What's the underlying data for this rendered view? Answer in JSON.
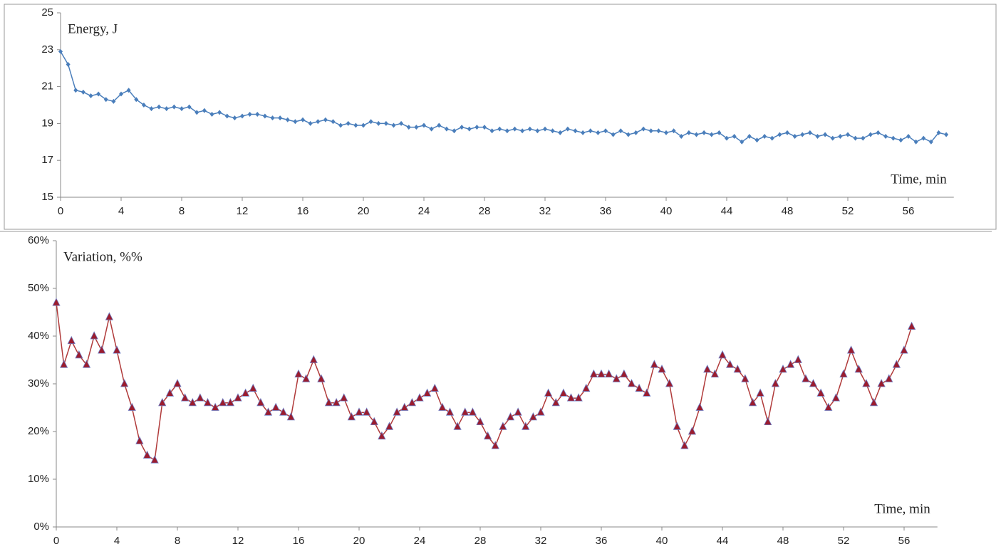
{
  "chart_data": [
    {
      "type": "line",
      "marker": "diamond",
      "color": "#4a7ebb",
      "marker_color": "#4a7ebb",
      "y_label": "Energy, J",
      "x_label": "Time, min",
      "xlim": [
        0,
        59
      ],
      "xticks": [
        0,
        4,
        8,
        12,
        16,
        20,
        24,
        28,
        32,
        36,
        40,
        44,
        48,
        52,
        56
      ],
      "ylim": [
        15,
        25
      ],
      "yticks": [
        15,
        17,
        19,
        21,
        23,
        25
      ],
      "grid": false,
      "x": [
        0,
        0.5,
        1,
        1.5,
        2,
        2.5,
        3,
        3.5,
        4,
        4.5,
        5,
        5.5,
        6,
        6.5,
        7,
        7.5,
        8,
        8.5,
        9,
        9.5,
        10,
        10.5,
        11,
        11.5,
        12,
        12.5,
        13,
        13.5,
        14,
        14.5,
        15,
        15.5,
        16,
        16.5,
        17,
        17.5,
        18,
        18.5,
        19,
        19.5,
        20,
        20.5,
        21,
        21.5,
        22,
        22.5,
        23,
        23.5,
        24,
        24.5,
        25,
        25.5,
        26,
        26.5,
        27,
        27.5,
        28,
        28.5,
        29,
        29.5,
        30,
        30.5,
        31,
        31.5,
        32,
        32.5,
        33,
        33.5,
        34,
        34.5,
        35,
        35.5,
        36,
        36.5,
        37,
        37.5,
        38,
        38.5,
        39,
        39.5,
        40,
        40.5,
        41,
        41.5,
        42,
        42.5,
        43,
        43.5,
        44,
        44.5,
        45,
        45.5,
        46,
        46.5,
        47,
        47.5,
        48,
        48.5,
        49,
        49.5,
        50,
        50.5,
        51,
        51.5,
        52,
        52.5,
        53,
        53.5,
        54,
        54.5,
        55,
        55.5,
        56,
        56.5,
        57,
        57.5,
        58,
        58.5
      ],
      "values": [
        22.9,
        22.2,
        20.8,
        20.7,
        20.5,
        20.6,
        20.3,
        20.2,
        20.6,
        20.8,
        20.3,
        20.0,
        19.8,
        19.9,
        19.8,
        19.9,
        19.8,
        19.9,
        19.6,
        19.7,
        19.5,
        19.6,
        19.4,
        19.3,
        19.4,
        19.5,
        19.5,
        19.4,
        19.3,
        19.3,
        19.2,
        19.1,
        19.2,
        19.0,
        19.1,
        19.2,
        19.1,
        18.9,
        19.0,
        18.9,
        18.9,
        19.1,
        19.0,
        19.0,
        18.9,
        19.0,
        18.8,
        18.8,
        18.9,
        18.7,
        18.9,
        18.7,
        18.6,
        18.8,
        18.7,
        18.8,
        18.8,
        18.6,
        18.7,
        18.6,
        18.7,
        18.6,
        18.7,
        18.6,
        18.7,
        18.6,
        18.5,
        18.7,
        18.6,
        18.5,
        18.6,
        18.5,
        18.6,
        18.4,
        18.6,
        18.4,
        18.5,
        18.7,
        18.6,
        18.6,
        18.5,
        18.6,
        18.3,
        18.5,
        18.4,
        18.5,
        18.4,
        18.5,
        18.2,
        18.3,
        18.0,
        18.3,
        18.1,
        18.3,
        18.2,
        18.4,
        18.5,
        18.3,
        18.4,
        18.5,
        18.3,
        18.4,
        18.2,
        18.3,
        18.4,
        18.2,
        18.2,
        18.4,
        18.5,
        18.3,
        18.2,
        18.1,
        18.3,
        18.0,
        18.2,
        18.0,
        18.5,
        18.4
      ]
    },
    {
      "type": "line",
      "marker": "triangle",
      "color": "#b03a3a",
      "marker_color": "#9b1c2e",
      "y_label": "Variation, %%",
      "x_label": "Time, min",
      "xlim": [
        0,
        58.2
      ],
      "xticks": [
        0,
        4,
        8,
        12,
        16,
        20,
        24,
        28,
        32,
        36,
        40,
        44,
        48,
        52,
        56
      ],
      "ylim": [
        0,
        60
      ],
      "yticks": [
        {
          "value": 0,
          "label": "0%"
        },
        {
          "value": 10,
          "label": "10%"
        },
        {
          "value": 20,
          "label": "20%"
        },
        {
          "value": 30,
          "label": "30%"
        },
        {
          "value": 40,
          "label": "40%"
        },
        {
          "value": 50,
          "label": "50%"
        },
        {
          "value": 60,
          "label": "60%"
        }
      ],
      "grid": false,
      "x": [
        0,
        0.5,
        1,
        1.5,
        2,
        2.5,
        3,
        3.5,
        4,
        4.5,
        5,
        5.5,
        6,
        6.5,
        7,
        7.5,
        8,
        8.5,
        9,
        9.5,
        10,
        10.5,
        11,
        11.5,
        12,
        12.5,
        13,
        13.5,
        14,
        14.5,
        15,
        15.5,
        16,
        16.5,
        17,
        17.5,
        18,
        18.5,
        19,
        19.5,
        20,
        20.5,
        21,
        21.5,
        22,
        22.5,
        23,
        23.5,
        24,
        24.5,
        25,
        25.5,
        26,
        26.5,
        27,
        27.5,
        28,
        28.5,
        29,
        29.5,
        30,
        30.5,
        31,
        31.5,
        32,
        32.5,
        33,
        33.5,
        34,
        34.5,
        35,
        35.5,
        36,
        36.5,
        37,
        37.5,
        38,
        38.5,
        39,
        39.5,
        40,
        40.5,
        41,
        41.5,
        42,
        42.5,
        43,
        43.5,
        44,
        44.5,
        45,
        45.5,
        46,
        46.5,
        47,
        47.5,
        48,
        48.5,
        49,
        49.5,
        50,
        50.5,
        51,
        51.5,
        52,
        52.5,
        53,
        53.5,
        54,
        54.5,
        55,
        55.5,
        56,
        56.5
      ],
      "values": [
        47,
        34,
        39,
        36,
        34,
        40,
        37,
        44,
        37,
        30,
        25,
        18,
        15,
        14,
        26,
        28,
        30,
        27,
        26,
        27,
        26,
        25,
        26,
        26,
        27,
        28,
        29,
        26,
        24,
        25,
        24,
        23,
        32,
        31,
        35,
        31,
        26,
        26,
        27,
        23,
        24,
        24,
        22,
        19,
        21,
        24,
        25,
        26,
        27,
        28,
        29,
        25,
        24,
        21,
        24,
        24,
        22,
        19,
        17,
        21,
        23,
        24,
        21,
        23,
        24,
        28,
        26,
        28,
        27,
        27,
        29,
        32,
        32,
        32,
        31,
        32,
        30,
        29,
        28,
        34,
        33,
        30,
        21,
        17,
        20,
        25,
        33,
        32,
        36,
        34,
        33,
        31,
        26,
        28,
        22,
        30,
        33,
        34,
        35,
        31,
        30,
        28,
        25,
        27,
        32,
        37,
        33,
        30,
        26,
        30,
        31,
        34,
        37,
        42
      ]
    }
  ]
}
